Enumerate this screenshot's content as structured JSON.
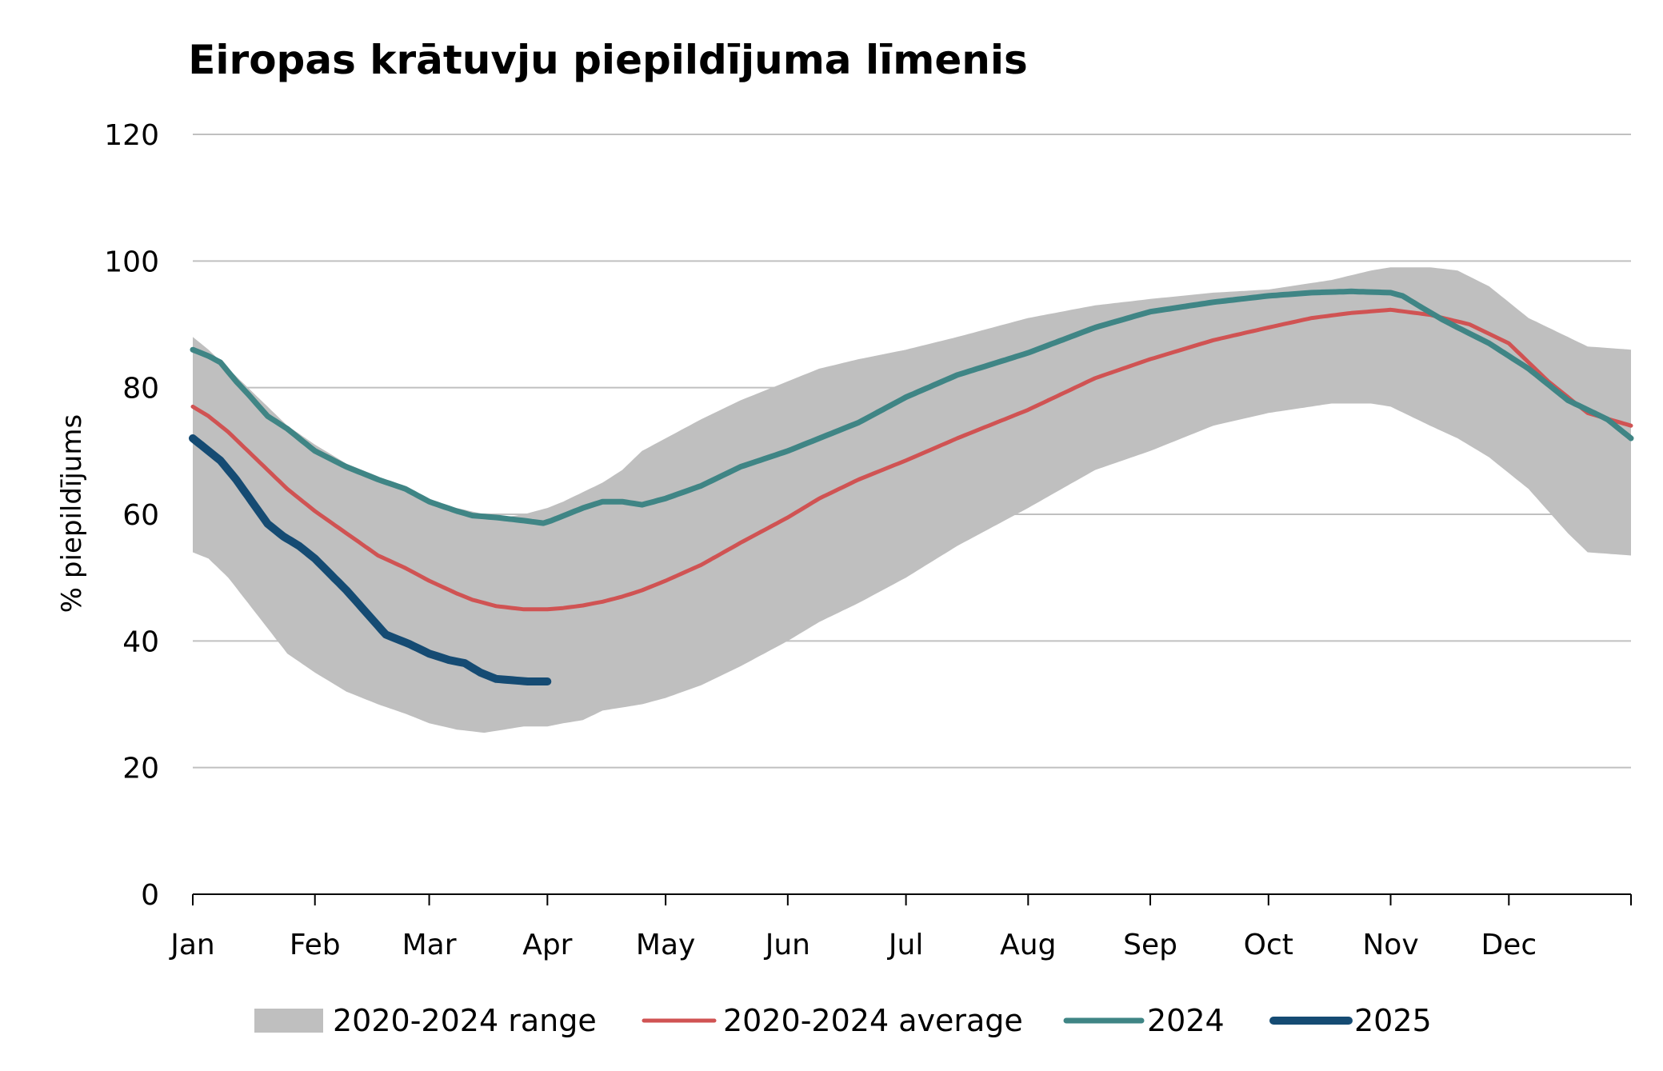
{
  "chart_data": {
    "type": "line",
    "title": "Eiropas krātuvju piepildījuma līmenis",
    "ylabel": "% piepildījums",
    "xlabel": "",
    "ylim": [
      0,
      120
    ],
    "yticks": [
      0,
      20,
      40,
      60,
      80,
      100,
      120
    ],
    "grid": true,
    "legend_position": "bottom",
    "x_axis": {
      "unit": "day of year",
      "range": [
        1,
        366
      ],
      "tick_labels": [
        {
          "label": "Jan",
          "day": 1
        },
        {
          "label": "Feb",
          "day": 32
        },
        {
          "label": "Mar",
          "day": 61
        },
        {
          "label": "Apr",
          "day": 91
        },
        {
          "label": "May",
          "day": 121
        },
        {
          "label": "Jun",
          "day": 152
        },
        {
          "label": "Jul",
          "day": 182
        },
        {
          "label": "Aug",
          "day": 213
        },
        {
          "label": "Sep",
          "day": 244
        },
        {
          "label": "Oct",
          "day": 274
        },
        {
          "label": "Nov",
          "day": 305
        },
        {
          "label": "Dec",
          "day": 335
        }
      ]
    },
    "range_band": {
      "name": "2020-2024 range",
      "color": "#bfbfbf",
      "x": [
        1,
        5,
        10,
        15,
        20,
        25,
        32,
        40,
        48,
        55,
        61,
        68,
        75,
        80,
        85,
        91,
        95,
        100,
        105,
        110,
        115,
        121,
        130,
        140,
        152,
        160,
        170,
        182,
        195,
        213,
        230,
        244,
        260,
        274,
        290,
        300,
        305,
        315,
        322,
        330,
        340,
        350,
        355,
        366
      ],
      "min": [
        54,
        53,
        50,
        46,
        42,
        38,
        35,
        32,
        30,
        28.5,
        27,
        26,
        25.5,
        26,
        26.5,
        26.5,
        27,
        27.5,
        29,
        29.5,
        30,
        31,
        33,
        36,
        40,
        43,
        46,
        50,
        55,
        61,
        67,
        70,
        74,
        76,
        77.5,
        77.5,
        77,
        74,
        72,
        69,
        64,
        57,
        54,
        53.5
      ],
      "max": [
        88,
        86,
        83,
        80,
        77,
        74,
        71,
        68,
        66,
        64,
        62,
        61,
        60,
        59.5,
        60,
        61,
        62,
        63.5,
        65,
        67,
        70,
        72,
        75,
        78,
        81,
        83,
        84.5,
        86,
        88,
        91,
        93,
        94,
        95,
        95.5,
        97,
        98.5,
        99,
        99,
        98.5,
        96,
        91,
        88,
        86.5,
        86
      ]
    },
    "series": [
      {
        "name": "2020-2024 average",
        "color": "#d05353",
        "x": [
          1,
          5,
          10,
          15,
          20,
          25,
          32,
          40,
          48,
          55,
          61,
          68,
          72,
          78,
          85,
          91,
          95,
          100,
          105,
          110,
          115,
          121,
          130,
          140,
          152,
          160,
          170,
          182,
          195,
          213,
          230,
          244,
          260,
          274,
          285,
          295,
          305,
          315,
          325,
          335,
          345,
          355,
          366
        ],
        "values": [
          77,
          75.5,
          73,
          70,
          67,
          64,
          60.5,
          57,
          53.5,
          51.5,
          49.5,
          47.5,
          46.5,
          45.5,
          45,
          45,
          45.2,
          45.6,
          46.2,
          47,
          48,
          49.5,
          52,
          55.5,
          59.5,
          62.5,
          65.5,
          68.5,
          72,
          76.5,
          81.5,
          84.5,
          87.5,
          89.5,
          91,
          91.8,
          92.3,
          91.5,
          90,
          87,
          81,
          76,
          74
        ]
      },
      {
        "name": "2024",
        "color": "#3f8585",
        "x": [
          1,
          5,
          8,
          12,
          15,
          20,
          25,
          32,
          40,
          48,
          55,
          61,
          68,
          72,
          78,
          85,
          90,
          92,
          96,
          100,
          105,
          110,
          115,
          121,
          130,
          140,
          152,
          160,
          170,
          182,
          195,
          213,
          230,
          244,
          260,
          274,
          285,
          295,
          305,
          308,
          312,
          318,
          322,
          330,
          340,
          350,
          355,
          360,
          366
        ],
        "values": [
          86,
          85,
          84,
          81,
          79,
          75.5,
          73.5,
          70,
          67.5,
          65.5,
          64,
          62,
          60.5,
          59.8,
          59.5,
          59,
          58.6,
          59,
          60,
          61,
          62,
          62,
          61.5,
          62.5,
          64.5,
          67.5,
          70,
          72,
          74.5,
          78.5,
          82,
          85.5,
          89.5,
          92,
          93.5,
          94.5,
          95,
          95.2,
          95,
          94.5,
          93,
          90.8,
          89.5,
          87,
          83,
          78,
          76.5,
          75,
          72
        ]
      },
      {
        "name": "2025",
        "color": "#154b73",
        "x": [
          1,
          4,
          8,
          12,
          16,
          20,
          24,
          28,
          32,
          36,
          40,
          45,
          50,
          52,
          56,
          61,
          66,
          70,
          74,
          78,
          82,
          86,
          91
        ],
        "values": [
          72,
          70.5,
          68.5,
          65.5,
          62,
          58.5,
          56.5,
          55,
          53,
          50.5,
          48,
          44.5,
          41,
          40.5,
          39.5,
          38,
          37,
          36.5,
          35,
          34,
          33.8,
          33.6,
          33.6
        ]
      }
    ],
    "legend": [
      {
        "label": "2020-2024 range",
        "kind": "band",
        "color": "#bfbfbf"
      },
      {
        "label": "2020-2024 average",
        "kind": "line",
        "color": "#d05353"
      },
      {
        "label": "2024",
        "kind": "line",
        "color": "#3f8585"
      },
      {
        "label": "2025",
        "kind": "line",
        "color": "#154b73"
      }
    ]
  }
}
